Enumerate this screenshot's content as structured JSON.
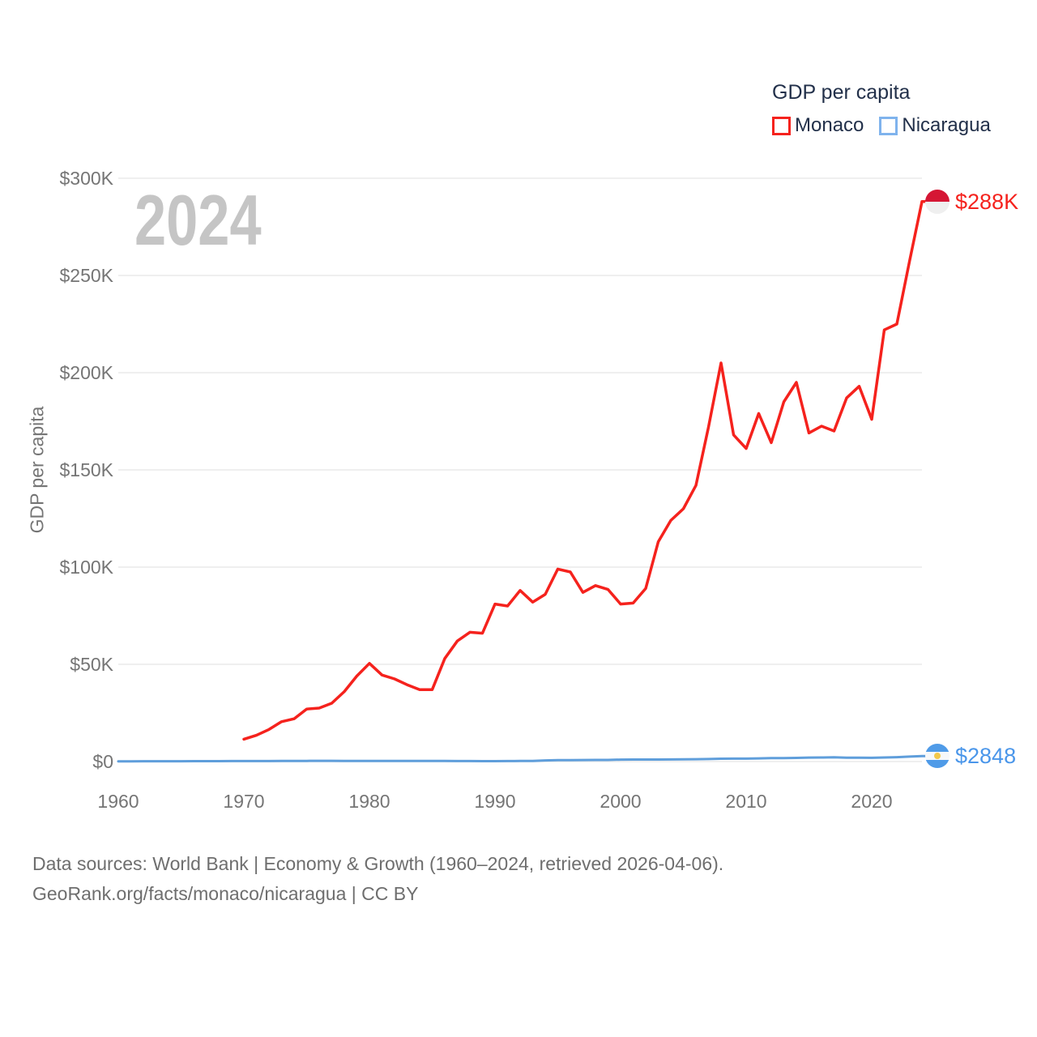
{
  "watermark": {
    "year": "2024"
  },
  "legend": {
    "title": "GDP per capita",
    "items": [
      {
        "label": "Monaco",
        "color": "#f5221d"
      },
      {
        "label": "Nicaragua",
        "color": "#7fb3ed"
      }
    ]
  },
  "y_axis": {
    "title": "GDP per capita",
    "ticks": [
      "$300K",
      "$250K",
      "$200K",
      "$150K",
      "$100K",
      "$50K",
      "$0"
    ]
  },
  "x_axis": {
    "ticks": [
      "1960",
      "1970",
      "1980",
      "1990",
      "2000",
      "2010",
      "2020"
    ]
  },
  "end_labels": {
    "monaco": "$288K",
    "nicaragua": "$2848"
  },
  "footer": {
    "line1": "Data sources: World Bank | Economy & Growth (1960–2024, retrieved 2026-04-06).",
    "line2": "GeoRank.org/facts/monaco/nicaragua | CC BY"
  },
  "chart_data": {
    "type": "line",
    "title": "GDP per capita",
    "xlabel": "",
    "ylabel": "GDP per capita",
    "x_range": [
      1960,
      2024
    ],
    "y_range": [
      0,
      300000
    ],
    "grid": true,
    "legend_position": "top-right",
    "year_annotation": "2024",
    "series": [
      {
        "name": "Monaco",
        "color": "#f5221d",
        "end_label": "$288K",
        "end_value": 288000,
        "x_start": 1970,
        "x_end": 2024,
        "values": [
          11500,
          13500,
          16500,
          20500,
          22000,
          27000,
          27500,
          30000,
          36000,
          44000,
          50500,
          44500,
          42500,
          39500,
          37000,
          37000,
          53000,
          62000,
          66500,
          66000,
          81000,
          80000,
          88000,
          82000,
          86000,
          99000,
          97500,
          87000,
          90500,
          88500,
          81000,
          81500,
          89000,
          113000,
          124000,
          130000,
          142000,
          172000,
          205000,
          168000,
          161000,
          179000,
          164000,
          185000,
          195000,
          169000,
          172500,
          170000,
          187000,
          193000,
          176000,
          222000,
          225000,
          257000,
          288000
        ]
      },
      {
        "name": "Nicaragua",
        "color": "#5f9edb",
        "end_label": "$2848",
        "end_value": 2848,
        "x_start": 1960,
        "x_end": 2024,
        "values": [
          130,
          140,
          150,
          160,
          170,
          185,
          200,
          215,
          225,
          235,
          240,
          255,
          270,
          300,
          340,
          345,
          355,
          365,
          340,
          310,
          280,
          290,
          300,
          310,
          320,
          300,
          280,
          260,
          230,
          215,
          210,
          250,
          290,
          320,
          600,
          700,
          750,
          790,
          820,
          850,
          1010,
          1050,
          1030,
          1040,
          1090,
          1160,
          1220,
          1310,
          1440,
          1480,
          1520,
          1630,
          1750,
          1790,
          1890,
          2060,
          2100,
          2150,
          2020,
          1970,
          1900,
          2090,
          2260,
          2530,
          2848
        ]
      }
    ]
  }
}
